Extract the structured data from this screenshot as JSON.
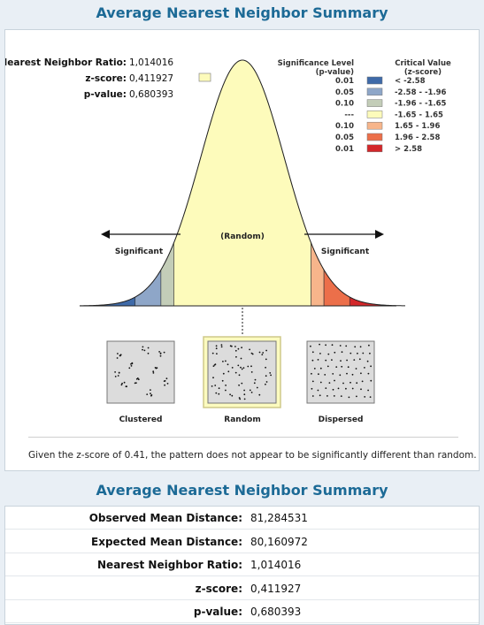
{
  "titles": {
    "summary_title": "Average Nearest Neighbor Summary",
    "table_title": "Average Nearest Neighbor Summary"
  },
  "stats": {
    "nn_ratio_label": "Nearest Neighbor Ratio:",
    "nn_ratio_value": "1,014016",
    "z_label": "z-score:",
    "z_value": "0,411927",
    "p_label": "p-value:",
    "p_value": "0,680393"
  },
  "legend": {
    "significance_header_1": "Significance Level",
    "significance_header_2": "(p-value)",
    "critical_header_1": "Critical Value",
    "critical_header_2": "(z-score)",
    "rows": [
      {
        "p": "0.01",
        "z": "< -2.58",
        "color": "#3f6aa8"
      },
      {
        "p": "0.05",
        "z": "-2.58 - -1.96",
        "color": "#8ea6c8"
      },
      {
        "p": "0.10",
        "z": "-1.96 - -1.65",
        "color": "#c3cdb8"
      },
      {
        "p": "---",
        "z": "-1.65 - 1.65",
        "color": "#fdfbbb"
      },
      {
        "p": "0.10",
        "z": "1.65 - 1.96",
        "color": "#f7b58b"
      },
      {
        "p": "0.05",
        "z": "1.96 - 2.58",
        "color": "#ec6f4a"
      },
      {
        "p": "0.01",
        "z": "> 2.58",
        "color": "#d3272a"
      }
    ]
  },
  "curve": {
    "random_label": "(Random)",
    "significant_left": "Significant",
    "significant_right": "Significant",
    "z_score": 0.41
  },
  "patterns": {
    "clustered": "Clustered",
    "random": "Random",
    "dispersed": "Dispersed"
  },
  "caption": "Given the z-score of 0.41, the pattern does not appear to be significantly different than random.",
  "table": [
    {
      "label": "Observed Mean Distance:",
      "value": "81,284531"
    },
    {
      "label": "Expected Mean Distance:",
      "value": "80,160972"
    },
    {
      "label": "Nearest Neighbor Ratio:",
      "value": "1,014016"
    },
    {
      "label": "z-score:",
      "value": "0,411927"
    },
    {
      "label": "p-value:",
      "value": "0,680393"
    }
  ]
}
